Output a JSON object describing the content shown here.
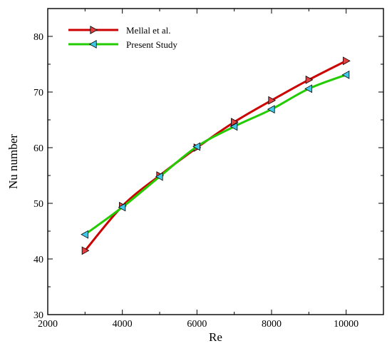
{
  "chart_data": {
    "type": "line",
    "xlabel": "Re",
    "ylabel": "Nu number",
    "xlim": [
      2000,
      11000
    ],
    "ylim": [
      30,
      85
    ],
    "x_ticks": [
      2000,
      4000,
      6000,
      8000,
      10000
    ],
    "y_ticks": [
      30,
      40,
      50,
      60,
      70,
      80
    ],
    "x_tick_labels": [
      "2000",
      "4000",
      "6000",
      "8000",
      "10000"
    ],
    "y_tick_labels": [
      "30",
      "40",
      "50",
      "60",
      "70",
      "80"
    ],
    "legend_position": "top-left",
    "series": [
      {
        "name": "Mellal et al.",
        "color": "#cc0000",
        "marker": "triangle-right",
        "marker_fill": "#e04040",
        "x": [
          3000,
          4000,
          5000,
          6000,
          7000,
          8000,
          9000,
          10000
        ],
        "y": [
          41.5,
          49.5,
          55.0,
          60.0,
          64.6,
          68.5,
          72.2,
          75.6
        ]
      },
      {
        "name": "Present Study",
        "color": "#22cc00",
        "marker": "triangle-left",
        "marker_fill": "#40c8e8",
        "x": [
          3000,
          4000,
          5000,
          6000,
          7000,
          8000,
          9000,
          10000
        ],
        "y": [
          44.4,
          49.3,
          54.8,
          60.2,
          63.8,
          66.9,
          70.6,
          73.1
        ]
      }
    ]
  }
}
